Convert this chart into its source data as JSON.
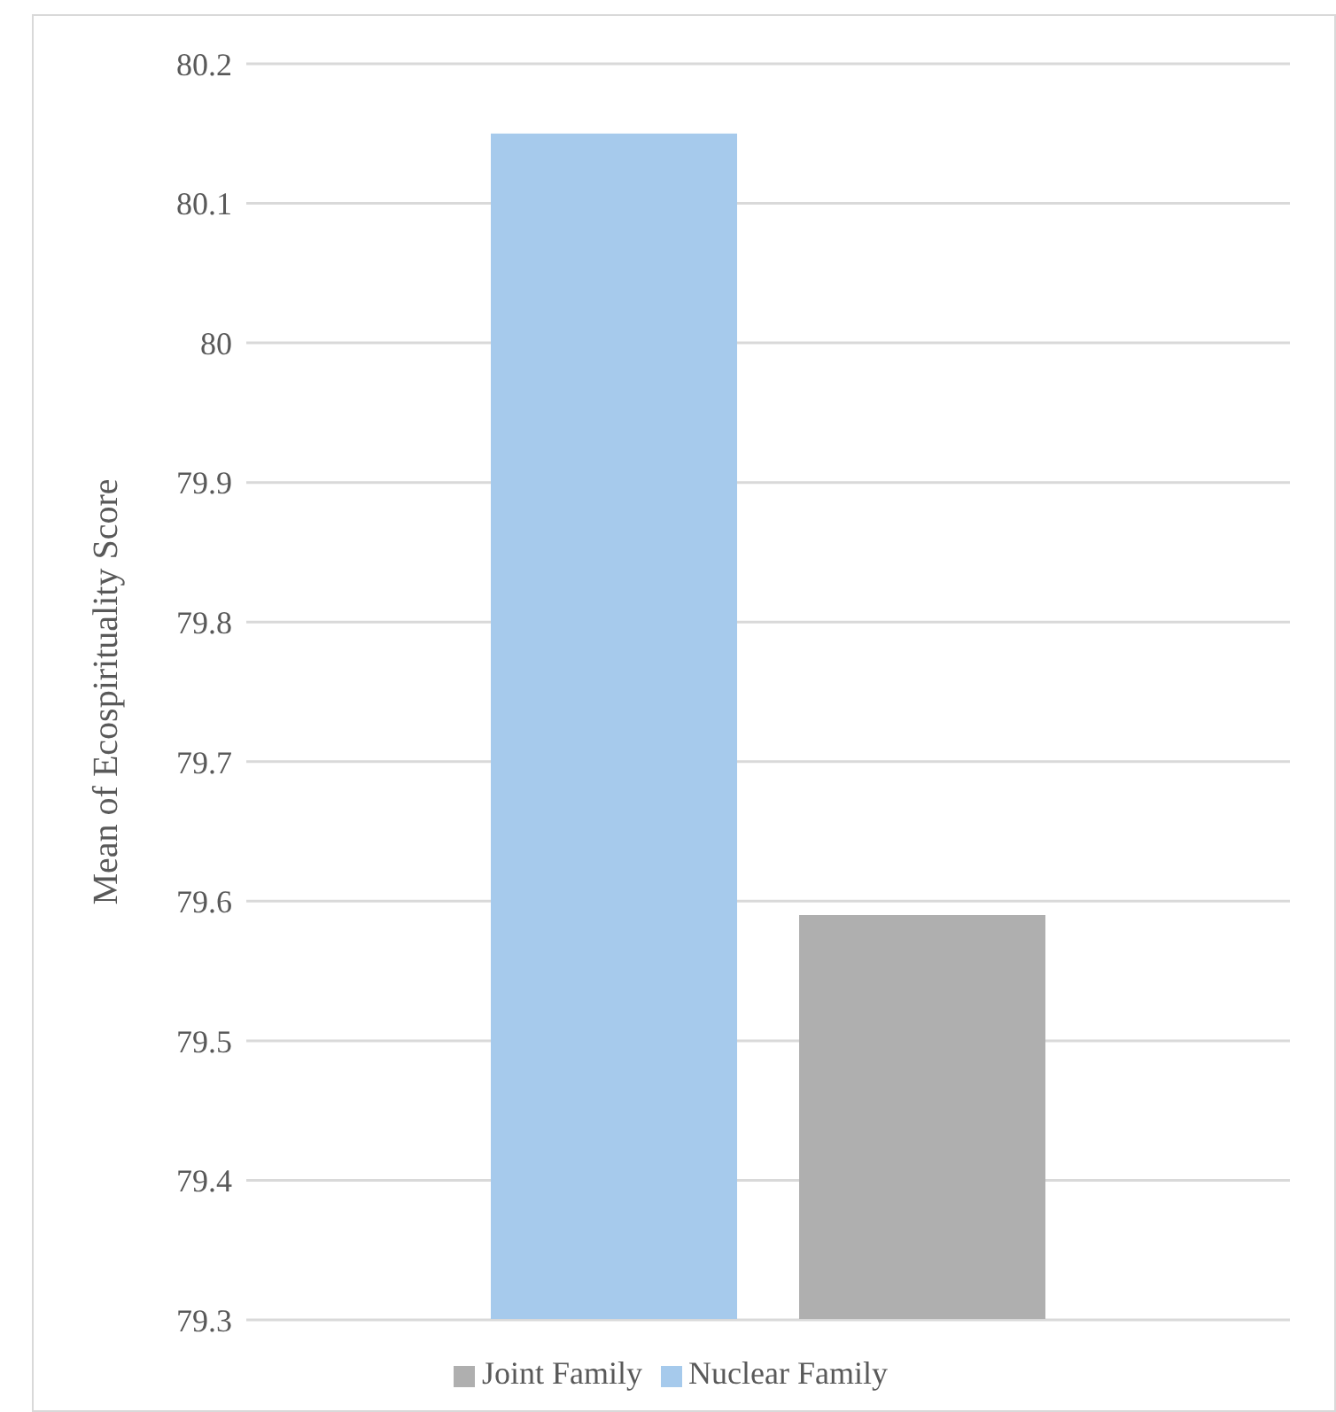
{
  "chart_data": {
    "type": "bar",
    "ylabel": "Mean of Ecospirituality Score",
    "categories": [
      null
    ],
    "series": [
      {
        "name": "Nuclear Family",
        "color": "#a6caec",
        "values": [
          80.15
        ]
      },
      {
        "name": "Joint Family",
        "color": "#afafaf",
        "values": [
          79.59
        ]
      }
    ],
    "ylim": [
      79.3,
      80.2
    ],
    "yticks": [
      79.3,
      79.4,
      79.5,
      79.6,
      79.7,
      79.8,
      79.9,
      80,
      80.1,
      80.2
    ],
    "grid": "y",
    "legend": "bottom"
  }
}
